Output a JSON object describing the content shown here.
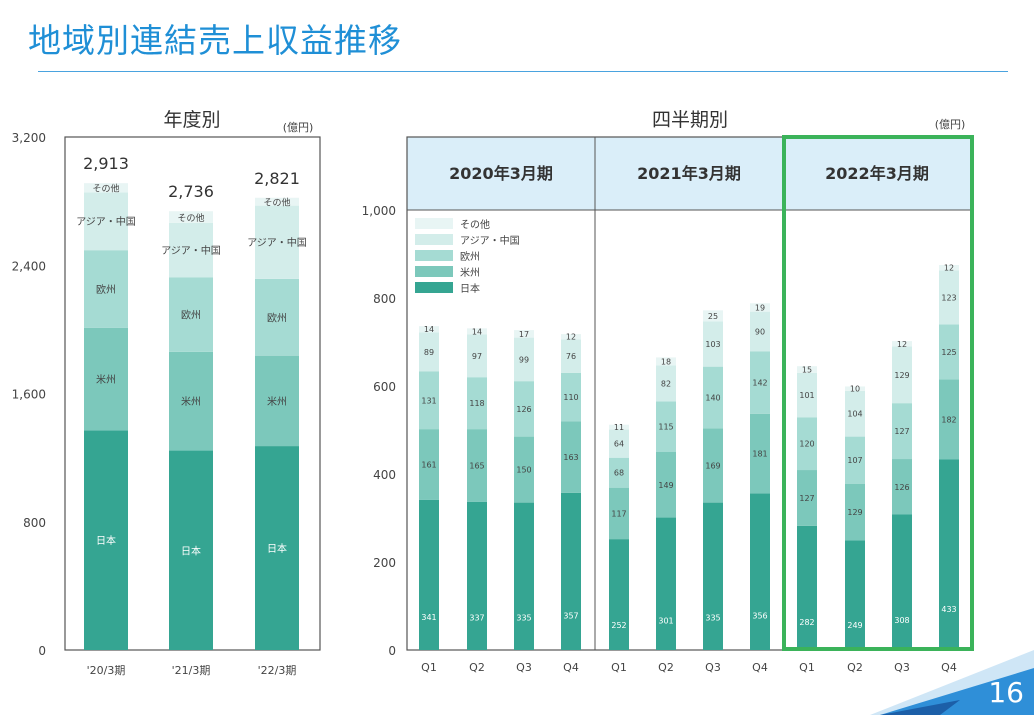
{
  "title": "地域別連結売上収益推移",
  "page_number": "16",
  "colors": {
    "日本": "#35a592",
    "米州": "#7cc8bb",
    "欧州": "#a5dbd3",
    "アジア・中国": "#d3edea",
    "その他": "#e8f5f4",
    "highlight": "#3bb35a",
    "header": "#daeef9"
  },
  "chart_data": [
    {
      "type": "bar",
      "stacked": true,
      "title": "年度別",
      "unit": "(億円)",
      "categories": [
        "'20/3期",
        "'21/3期",
        "'22/3期"
      ],
      "yticks": [
        0,
        800,
        1600,
        2400,
        3200
      ],
      "ylim": [
        0,
        3200
      ],
      "series": [
        {
          "name": "日本",
          "values": [
            1370,
            1244,
            1272
          ]
        },
        {
          "name": "米州",
          "values": [
            639,
            616,
            564
          ]
        },
        {
          "name": "欧州",
          "values": [
            485,
            465,
            479
          ]
        },
        {
          "name": "アジア・中国",
          "values": [
            361,
            339,
            457
          ]
        },
        {
          "name": "その他",
          "values": [
            57,
            73,
            49
          ]
        }
      ],
      "totals": [
        "2,913",
        "2,736",
        "2,821"
      ]
    },
    {
      "type": "bar",
      "stacked": true,
      "title": "四半期別",
      "unit": "(億円)",
      "groups": [
        "2020年3月期",
        "2021年3月期",
        "2022年3月期"
      ],
      "highlight_group": "2022年3月期",
      "categories": [
        "Q1",
        "Q2",
        "Q3",
        "Q4",
        "Q1",
        "Q2",
        "Q3",
        "Q4",
        "Q1",
        "Q2",
        "Q3",
        "Q4"
      ],
      "yticks": [
        0,
        200,
        400,
        600,
        800,
        "1,000"
      ],
      "ylim": [
        0,
        1000
      ],
      "legend": [
        "その他",
        "アジア・中国",
        "欧州",
        "米州",
        "日本"
      ],
      "legend_position": "top-left",
      "series": [
        {
          "name": "日本",
          "values": [
            341,
            337,
            335,
            357,
            252,
            301,
            335,
            356,
            282,
            249,
            308,
            433
          ]
        },
        {
          "name": "米州",
          "values": [
            161,
            165,
            150,
            163,
            117,
            149,
            169,
            181,
            127,
            129,
            126,
            182
          ]
        },
        {
          "name": "欧州",
          "values": [
            131,
            118,
            126,
            110,
            68,
            115,
            140,
            142,
            120,
            107,
            127,
            125
          ]
        },
        {
          "name": "アジア・中国",
          "values": [
            89,
            97,
            99,
            76,
            64,
            82,
            103,
            90,
            101,
            104,
            129,
            123
          ]
        },
        {
          "name": "その他",
          "values": [
            14,
            14,
            17,
            12,
            11,
            18,
            25,
            19,
            15,
            10,
            12,
            12
          ]
        }
      ]
    }
  ]
}
